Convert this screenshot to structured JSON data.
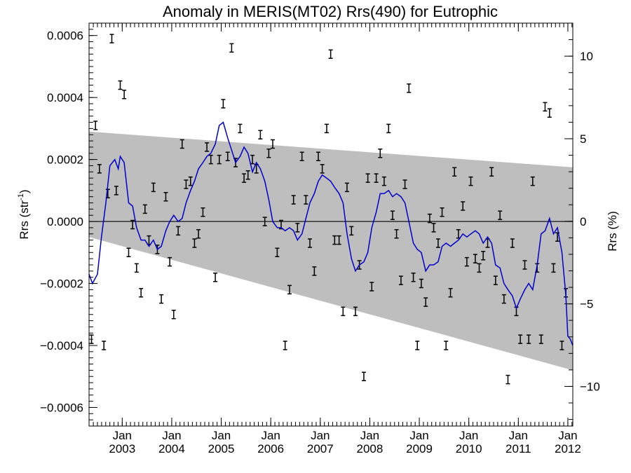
{
  "chart_data": {
    "type": "scatter",
    "title": "Anomaly in MERIS(MT02) Rrs(490) for Eutrophic",
    "ylabel_left": "Rrs (str",
    "ylabel_left_sup": "-1",
    "ylabel_left_close": ")",
    "ylabel_right": "Rrs (%)",
    "xlim": [
      2002.33,
      2012.1
    ],
    "ylim": [
      -0.00066,
      0.00064
    ],
    "y2lim": [
      -12.4,
      12.0
    ],
    "xticks": [
      {
        "x": 2003.0,
        "top": "Jan",
        "bottom": "2003"
      },
      {
        "x": 2004.0,
        "top": "Jan",
        "bottom": "2004"
      },
      {
        "x": 2005.0,
        "top": "Jan",
        "bottom": "2005"
      },
      {
        "x": 2006.0,
        "top": "Jan",
        "bottom": "2006"
      },
      {
        "x": 2007.0,
        "top": "Jan",
        "bottom": "2007"
      },
      {
        "x": 2008.0,
        "top": "Jan",
        "bottom": "2008"
      },
      {
        "x": 2009.0,
        "top": "Jan",
        "bottom": "2009"
      },
      {
        "x": 2010.0,
        "top": "Jan",
        "bottom": "2010"
      },
      {
        "x": 2011.0,
        "top": "Jan",
        "bottom": "2011"
      },
      {
        "x": 2012.0,
        "top": "Jan",
        "bottom": "2012"
      }
    ],
    "yticks": [
      {
        "v": 0.0006,
        "label": "0.0006"
      },
      {
        "v": 0.0004,
        "label": "0.0004"
      },
      {
        "v": 0.0002,
        "label": "0.0002"
      },
      {
        "v": 0.0,
        "label": "0.0000"
      },
      {
        "v": -0.0002,
        "label": "−0.0002"
      },
      {
        "v": -0.0004,
        "label": "−0.0004"
      },
      {
        "v": -0.0006,
        "label": "−0.0006"
      }
    ],
    "y2ticks": [
      {
        "v": 10,
        "label": "10"
      },
      {
        "v": 5,
        "label": "5"
      },
      {
        "v": 0,
        "label": "0"
      },
      {
        "v": -5,
        "label": "−5"
      },
      {
        "v": -10,
        "label": "−10"
      }
    ],
    "band": {
      "upper": [
        [
          2002.33,
          0.00029
        ],
        [
          2012.1,
          0.000175
        ]
      ],
      "lower": [
        [
          2002.33,
          -5e-05
        ],
        [
          2012.1,
          -0.00048
        ]
      ]
    },
    "colors": {
      "band": "#bebebe",
      "line": "#0000cc",
      "points": "#000000"
    },
    "points": [
      [
        2002.38,
        -0.00038
      ],
      [
        2002.46,
        0.00031
      ],
      [
        2002.54,
        0.00017
      ],
      [
        2002.63,
        -0.0004
      ],
      [
        2002.71,
        9e-05
      ],
      [
        2002.79,
        0.00059
      ],
      [
        2002.88,
        0.0001
      ],
      [
        2002.96,
        0.00044
      ],
      [
        2003.04,
        0.00041
      ],
      [
        2003.13,
        -0.0001
      ],
      [
        2003.21,
        -1e-05
      ],
      [
        2003.29,
        -0.00015
      ],
      [
        2003.38,
        -0.00023
      ],
      [
        2003.46,
        4e-05
      ],
      [
        2003.54,
        -6e-05
      ],
      [
        2003.63,
        0.00011
      ],
      [
        2003.71,
        -9e-05
      ],
      [
        2003.79,
        -0.00025
      ],
      [
        2003.88,
        8e-05
      ],
      [
        2003.96,
        -0.00013
      ],
      [
        2004.04,
        -0.0003
      ],
      [
        2004.13,
        -3e-05
      ],
      [
        2004.21,
        0.00025
      ],
      [
        2004.29,
        0.00012
      ],
      [
        2004.38,
        0.00013
      ],
      [
        2004.46,
        -7e-05
      ],
      [
        2004.54,
        -4e-05
      ],
      [
        2004.63,
        3e-05
      ],
      [
        2004.71,
        0.00024
      ],
      [
        2004.79,
        0.0002
      ],
      [
        2004.88,
        -0.00018
      ],
      [
        2004.96,
        0.0002
      ],
      [
        2005.04,
        0.00038
      ],
      [
        2005.13,
        0.00021
      ],
      [
        2005.21,
        0.00056
      ],
      [
        2005.29,
        0.00019
      ],
      [
        2005.38,
        0.0003
      ],
      [
        2005.46,
        0.00014
      ],
      [
        2005.54,
        0.00015
      ],
      [
        2005.63,
        0.0002
      ],
      [
        2005.71,
        0.00017
      ],
      [
        2005.79,
        0.00028
      ],
      [
        2005.88,
        0.0
      ],
      [
        2005.96,
        0.00022
      ],
      [
        2006.04,
        0.00025
      ],
      [
        2006.13,
        -0.0001
      ],
      [
        2006.21,
        -1e-05
      ],
      [
        2006.29,
        -0.0004
      ],
      [
        2006.38,
        -0.00022
      ],
      [
        2006.46,
        7e-05
      ],
      [
        2006.54,
        -2e-05
      ],
      [
        2006.63,
        0.00021
      ],
      [
        2006.71,
        7e-05
      ],
      [
        2006.79,
        -7e-05
      ],
      [
        2006.88,
        -0.00016
      ],
      [
        2006.96,
        0.00021
      ],
      [
        2007.04,
        0.00017
      ],
      [
        2007.13,
        0.0003
      ],
      [
        2007.21,
        0.00054
      ],
      [
        2007.29,
        -6e-05
      ],
      [
        2007.38,
        -6e-05
      ],
      [
        2007.46,
        -0.00029
      ],
      [
        2007.54,
        0.00011
      ],
      [
        2007.63,
        -3e-05
      ],
      [
        2007.71,
        -0.00029
      ],
      [
        2007.79,
        -0.00014
      ],
      [
        2007.88,
        -0.0005
      ],
      [
        2007.96,
        0.00014
      ],
      [
        2008.04,
        -0.00021
      ],
      [
        2008.13,
        0.00014
      ],
      [
        2008.21,
        0.00022
      ],
      [
        2008.29,
        0.00013
      ],
      [
        2008.38,
        0.0003
      ],
      [
        2008.46,
        2e-05
      ],
      [
        2008.54,
        -4e-05
      ],
      [
        2008.63,
        -0.00019
      ],
      [
        2008.71,
        0.00012
      ],
      [
        2008.79,
        0.00043
      ],
      [
        2008.88,
        -0.00018
      ],
      [
        2008.96,
        -0.0004
      ],
      [
        2009.04,
        -0.0002
      ],
      [
        2009.13,
        -0.00026
      ],
      [
        2009.21,
        1e-05
      ],
      [
        2009.29,
        -2e-05
      ],
      [
        2009.38,
        -7e-05
      ],
      [
        2009.46,
        3e-05
      ],
      [
        2009.54,
        -0.0004
      ],
      [
        2009.63,
        -0.00023
      ],
      [
        2009.71,
        0.00016
      ],
      [
        2009.79,
        -4e-05
      ],
      [
        2009.88,
        5e-05
      ],
      [
        2009.96,
        -0.00013
      ],
      [
        2010.04,
        0.00013
      ],
      [
        2010.13,
        -0.00012
      ],
      [
        2010.21,
        -0.00015
      ],
      [
        2010.29,
        -0.00011
      ],
      [
        2010.38,
        -7e-05
      ],
      [
        2010.46,
        0.00016
      ],
      [
        2010.54,
        -0.00019
      ],
      [
        2010.63,
        2e-05
      ],
      [
        2010.71,
        -0.00025
      ],
      [
        2010.79,
        -0.00051
      ],
      [
        2010.88,
        -7e-05
      ],
      [
        2010.96,
        -0.00029
      ],
      [
        2011.04,
        -0.00038
      ],
      [
        2011.13,
        -0.00014
      ],
      [
        2011.21,
        -0.00038
      ],
      [
        2011.29,
        0.00013
      ],
      [
        2011.38,
        -0.00015
      ],
      [
        2011.46,
        -0.00038
      ],
      [
        2011.54,
        0.00037
      ],
      [
        2011.63,
        0.00035
      ],
      [
        2011.71,
        -0.00015
      ],
      [
        2011.79,
        -5e-05
      ],
      [
        2011.88,
        -0.0004
      ],
      [
        2011.96,
        -0.00023
      ]
    ],
    "line": [
      [
        2002.33,
        -0.00017
      ],
      [
        2002.4,
        -0.0002
      ],
      [
        2002.5,
        -0.00017
      ],
      [
        2002.58,
        -5e-05
      ],
      [
        2002.67,
        6e-05
      ],
      [
        2002.75,
        0.00018
      ],
      [
        2002.85,
        0.0002
      ],
      [
        2002.92,
        0.00017
      ],
      [
        2002.96,
        0.00021
      ],
      [
        2003.04,
        0.00019
      ],
      [
        2003.13,
        6e-05
      ],
      [
        2003.21,
        5e-05
      ],
      [
        2003.29,
        -2e-05
      ],
      [
        2003.38,
        -6e-05
      ],
      [
        2003.46,
        -6e-05
      ],
      [
        2003.54,
        -8e-05
      ],
      [
        2003.63,
        -6e-05
      ],
      [
        2003.71,
        -9e-05
      ],
      [
        2003.79,
        -8e-05
      ],
      [
        2003.88,
        -3e-05
      ],
      [
        2003.96,
        0.0
      ],
      [
        2004.04,
        2e-05
      ],
      [
        2004.13,
        0.0
      ],
      [
        2004.21,
        1e-05
      ],
      [
        2004.29,
        6e-05
      ],
      [
        2004.38,
        0.0001
      ],
      [
        2004.46,
        0.00013
      ],
      [
        2004.54,
        0.00017
      ],
      [
        2004.63,
        0.00019
      ],
      [
        2004.71,
        0.00021
      ],
      [
        2004.79,
        0.00022
      ],
      [
        2004.88,
        0.00025
      ],
      [
        2004.96,
        0.00031
      ],
      [
        2005.04,
        0.00032
      ],
      [
        2005.13,
        0.00027
      ],
      [
        2005.21,
        0.00023
      ],
      [
        2005.29,
        0.00019
      ],
      [
        2005.38,
        0.00021
      ],
      [
        2005.46,
        0.00024
      ],
      [
        2005.54,
        0.00022
      ],
      [
        2005.63,
        0.00016
      ],
      [
        2005.71,
        0.00019
      ],
      [
        2005.79,
        0.00017
      ],
      [
        2005.88,
        0.00013
      ],
      [
        2005.96,
        7e-05
      ],
      [
        2006.04,
        0.0
      ],
      [
        2006.13,
        -2e-05
      ],
      [
        2006.21,
        -2e-05
      ],
      [
        2006.29,
        -3e-05
      ],
      [
        2006.38,
        -2e-05
      ],
      [
        2006.46,
        -3e-05
      ],
      [
        2006.54,
        -6e-05
      ],
      [
        2006.63,
        -4e-05
      ],
      [
        2006.71,
        1e-05
      ],
      [
        2006.79,
        6e-05
      ],
      [
        2006.88,
        9e-05
      ],
      [
        2006.96,
        0.00013
      ],
      [
        2007.04,
        0.00015
      ],
      [
        2007.13,
        0.00014
      ],
      [
        2007.21,
        0.00013
      ],
      [
        2007.29,
        0.00011
      ],
      [
        2007.38,
        9e-05
      ],
      [
        2007.46,
        6e-05
      ],
      [
        2007.54,
        -4e-05
      ],
      [
        2007.63,
        -0.00012
      ],
      [
        2007.71,
        -0.00016
      ],
      [
        2007.79,
        -0.00014
      ],
      [
        2007.88,
        -0.00013
      ],
      [
        2007.96,
        -0.0001
      ],
      [
        2008.04,
        -2e-05
      ],
      [
        2008.13,
        3e-05
      ],
      [
        2008.21,
        9e-05
      ],
      [
        2008.29,
        9e-05
      ],
      [
        2008.38,
        0.0001
      ],
      [
        2008.46,
        8e-05
      ],
      [
        2008.54,
        9e-05
      ],
      [
        2008.63,
        8e-05
      ],
      [
        2008.71,
        6e-05
      ],
      [
        2008.79,
        0.0
      ],
      [
        2008.88,
        -7e-05
      ],
      [
        2008.96,
        -9e-05
      ],
      [
        2009.04,
        -0.0001
      ],
      [
        2009.13,
        -0.00016
      ],
      [
        2009.21,
        -0.00014
      ],
      [
        2009.29,
        -0.00014
      ],
      [
        2009.38,
        -0.00013
      ],
      [
        2009.46,
        -8e-05
      ],
      [
        2009.54,
        -7e-05
      ],
      [
        2009.63,
        -8e-05
      ],
      [
        2009.71,
        -7e-05
      ],
      [
        2009.79,
        -6e-05
      ],
      [
        2009.88,
        -4e-05
      ],
      [
        2009.96,
        -5e-05
      ],
      [
        2010.04,
        -4e-05
      ],
      [
        2010.13,
        -3e-05
      ],
      [
        2010.21,
        -4e-05
      ],
      [
        2010.29,
        -7e-05
      ],
      [
        2010.38,
        -5e-05
      ],
      [
        2010.46,
        -7e-05
      ],
      [
        2010.54,
        -0.00014
      ],
      [
        2010.63,
        -0.00015
      ],
      [
        2010.71,
        -0.0002
      ],
      [
        2010.79,
        -0.00022
      ],
      [
        2010.88,
        -0.00024
      ],
      [
        2010.96,
        -0.00028
      ],
      [
        2011.04,
        -0.00025
      ],
      [
        2011.13,
        -0.00022
      ],
      [
        2011.21,
        -0.0002
      ],
      [
        2011.29,
        -0.00022
      ],
      [
        2011.38,
        -0.00014
      ],
      [
        2011.46,
        -4e-05
      ],
      [
        2011.54,
        -3e-05
      ],
      [
        2011.63,
        1e-05
      ],
      [
        2011.71,
        -4e-05
      ],
      [
        2011.79,
        -2e-05
      ],
      [
        2011.88,
        -0.0001
      ],
      [
        2011.96,
        -0.00024
      ],
      [
        2012.0,
        -0.00037
      ],
      [
        2012.05,
        -0.00038
      ],
      [
        2012.1,
        -0.0004
      ]
    ]
  }
}
